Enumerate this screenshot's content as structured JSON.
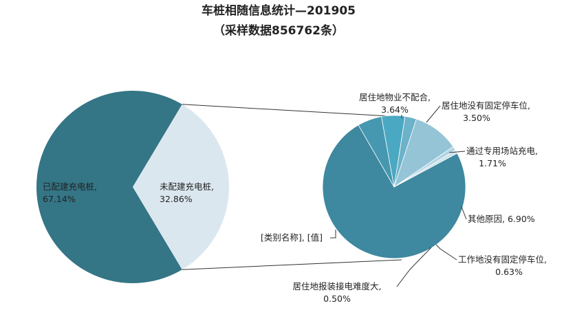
{
  "chart_data": {
    "type": "pie",
    "subtype": "pie-of-pie",
    "title": "车桩相随信息统计—201905",
    "subtitle": "（采样数据856762条）",
    "main_pie": {
      "slices": [
        {
          "name": "已配建充电桩,",
          "value_label": "67.14%",
          "value": 67.14,
          "color": "#347586"
        },
        {
          "name": "未配建充电桩,",
          "value_label": "32.86%",
          "value": 32.86,
          "color": "#dbe7ef"
        }
      ]
    },
    "secondary_pie": {
      "slices": [
        {
          "name": "[类别名称], [值]",
          "value_label": "",
          "value": 49.28,
          "color": "#3e88a0"
        },
        {
          "name": "居住地物业不配合,",
          "value_label": "3.64%",
          "value": 3.64,
          "color": "#4698b0"
        },
        {
          "name": "居住地没有固定停车位,",
          "value_label": "3.50%",
          "value": 3.5,
          "color": "#4aa8c2"
        },
        {
          "name": "通过专用场站充电,",
          "value_label": "1.71%",
          "value": 1.71,
          "color": "#6cb2c8"
        },
        {
          "name": "其他原因,",
          "value_label": "6.90%",
          "value": 6.9,
          "color": "#94c4d6"
        },
        {
          "name": "工作地没有固定停车位,",
          "value_label": "0.63%",
          "value": 0.63,
          "color": "#b0d4e2"
        },
        {
          "name": "居住地报装接电难度大,",
          "value_label": "0.50%",
          "value": 0.5,
          "color": "#cde3ec"
        }
      ]
    }
  }
}
